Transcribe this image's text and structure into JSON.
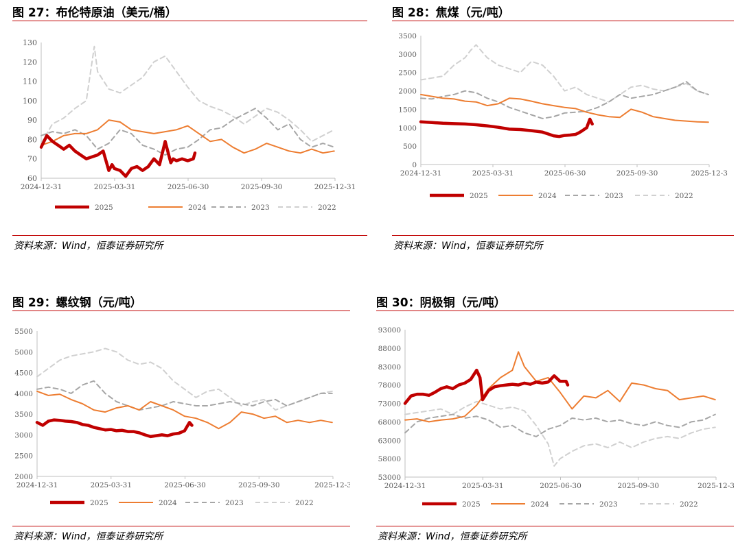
{
  "colors": {
    "s2025": "#c00000",
    "s2024": "#ed7d31",
    "s2023": "#a6a6a6",
    "s2022": "#d0d0d0",
    "rule": "#c00000"
  },
  "source_note": "资料来源：Wind，恒泰证券研究所",
  "legend_labels": [
    "2025",
    "2024",
    "2023",
    "2022"
  ],
  "chart_data": [
    {
      "type": "line",
      "title": "图 27：布伦特原油（美元/桶）",
      "ylim": [
        60,
        130
      ],
      "yticks": [
        60,
        70,
        80,
        90,
        100,
        110,
        120,
        130
      ],
      "xtick_labels": [
        "2024-12-31",
        "2025-03-31",
        "2025-06-30",
        "2025-09-30",
        "2025-12-31"
      ],
      "xrange": [
        0,
        365
      ],
      "series": [
        {
          "name": "2025",
          "x": [
            0,
            7,
            14,
            21,
            28,
            35,
            42,
            49,
            56,
            63,
            70,
            77,
            84,
            88,
            91,
            98,
            105,
            112,
            119,
            126,
            133,
            140,
            147,
            154,
            161,
            164,
            168,
            175,
            182,
            189,
            191
          ],
          "y": [
            76,
            82,
            79,
            77,
            75,
            77,
            74,
            72,
            70,
            71,
            72,
            74,
            64,
            67,
            65,
            64,
            61,
            65,
            66,
            64,
            66,
            70,
            67,
            79,
            68,
            70,
            69,
            70,
            69,
            70,
            73
          ]
        },
        {
          "name": "2024",
          "x": [
            0,
            14,
            28,
            42,
            56,
            70,
            84,
            98,
            112,
            126,
            140,
            154,
            168,
            182,
            196,
            210,
            224,
            238,
            252,
            266,
            280,
            294,
            308,
            322,
            336,
            350,
            364
          ],
          "y": [
            77,
            79,
            82,
            83,
            83,
            85,
            90,
            89,
            85,
            84,
            83,
            84,
            85,
            87,
            83,
            79,
            80,
            76,
            73,
            75,
            78,
            76,
            74,
            73,
            75,
            73,
            74
          ]
        },
        {
          "name": "2023",
          "x": [
            0,
            14,
            28,
            42,
            56,
            70,
            84,
            98,
            112,
            126,
            140,
            154,
            168,
            182,
            196,
            210,
            224,
            238,
            252,
            266,
            280,
            294,
            308,
            322,
            336,
            350,
            364
          ],
          "y": [
            82,
            84,
            83,
            85,
            82,
            75,
            78,
            85,
            83,
            77,
            75,
            72,
            75,
            76,
            80,
            85,
            86,
            90,
            93,
            96,
            91,
            85,
            88,
            80,
            76,
            78,
            76
          ]
        },
        {
          "name": "2022",
          "x": [
            0,
            14,
            28,
            42,
            56,
            66,
            70,
            84,
            98,
            112,
            126,
            140,
            154,
            168,
            182,
            196,
            210,
            224,
            238,
            252,
            266,
            280,
            294,
            308,
            322,
            336,
            350,
            364
          ],
          "y": [
            78,
            88,
            91,
            96,
            100,
            128,
            115,
            106,
            104,
            108,
            112,
            120,
            123,
            115,
            107,
            100,
            97,
            95,
            92,
            88,
            92,
            96,
            94,
            90,
            85,
            79,
            82,
            85
          ]
        }
      ]
    },
    {
      "type": "line",
      "title": "图 28：焦煤（元/吨）",
      "ylim": [
        0,
        3500
      ],
      "yticks": [
        0,
        500,
        1000,
        1500,
        2000,
        2500,
        3000,
        3500
      ],
      "xtick_labels": [
        "2024-12-31",
        "2025-03-31",
        "2025-06-30",
        "2025-09-30",
        "2025-12-3"
      ],
      "xrange": [
        0,
        365
      ],
      "series": [
        {
          "name": "2025",
          "x": [
            0,
            14,
            28,
            42,
            56,
            70,
            84,
            98,
            112,
            126,
            140,
            154,
            161,
            168,
            175,
            182,
            189,
            196,
            200,
            203,
            210,
            214,
            217
          ],
          "y": [
            1160,
            1140,
            1120,
            1110,
            1100,
            1080,
            1050,
            1010,
            960,
            950,
            920,
            880,
            830,
            780,
            760,
            790,
            800,
            820,
            860,
            900,
            1000,
            1230,
            1100
          ]
        },
        {
          "name": "2024",
          "x": [
            0,
            14,
            28,
            42,
            56,
            70,
            84,
            98,
            112,
            126,
            140,
            154,
            168,
            182,
            196,
            210,
            224,
            238,
            252,
            266,
            280,
            294,
            308,
            322,
            336,
            350,
            364
          ],
          "y": [
            1900,
            1850,
            1800,
            1780,
            1720,
            1700,
            1600,
            1650,
            1800,
            1780,
            1720,
            1650,
            1600,
            1550,
            1520,
            1420,
            1350,
            1300,
            1280,
            1500,
            1420,
            1300,
            1250,
            1200,
            1180,
            1160,
            1150
          ]
        },
        {
          "name": "2023",
          "x": [
            0,
            14,
            28,
            42,
            56,
            70,
            84,
            98,
            112,
            126,
            140,
            154,
            168,
            182,
            196,
            210,
            224,
            238,
            252,
            266,
            280,
            294,
            308,
            322,
            336,
            350,
            364
          ],
          "y": [
            1800,
            1780,
            1850,
            1900,
            2000,
            1950,
            1800,
            1700,
            1550,
            1450,
            1350,
            1250,
            1300,
            1400,
            1420,
            1450,
            1550,
            1700,
            1900,
            1800,
            1850,
            1900,
            2000,
            2100,
            2250,
            2000,
            1900
          ]
        },
        {
          "name": "2022",
          "x": [
            0,
            14,
            28,
            42,
            56,
            63,
            70,
            84,
            98,
            112,
            126,
            140,
            154,
            168,
            182,
            196,
            210,
            224,
            238,
            252,
            266,
            280,
            294,
            308,
            322,
            336,
            350,
            364
          ],
          "y": [
            2300,
            2350,
            2400,
            2700,
            2900,
            3100,
            3250,
            2900,
            2700,
            2600,
            2500,
            2800,
            2700,
            2400,
            2000,
            2100,
            1900,
            1800,
            1700,
            1900,
            2100,
            2150,
            2050,
            2000,
            2100,
            2200,
            2000,
            1900
          ]
        }
      ]
    },
    {
      "type": "line",
      "title": "图 29：螺纹钢（元/吨）",
      "ylim": [
        2000,
        5500
      ],
      "yticks": [
        2000,
        2500,
        3000,
        3500,
        4000,
        4500,
        5000,
        5500
      ],
      "xtick_labels": [
        "2024-12-31",
        "2025-03-31",
        "2025-06-30",
        "2025-09-30",
        "2025-12-3"
      ],
      "xrange": [
        0,
        365
      ],
      "series": [
        {
          "name": "2025",
          "x": [
            0,
            7,
            14,
            21,
            28,
            35,
            42,
            49,
            56,
            63,
            70,
            77,
            84,
            91,
            98,
            105,
            112,
            119,
            126,
            133,
            140,
            147,
            154,
            161,
            168,
            175,
            182,
            188,
            191
          ],
          "y": [
            3300,
            3230,
            3330,
            3360,
            3350,
            3330,
            3320,
            3300,
            3250,
            3230,
            3180,
            3150,
            3120,
            3130,
            3100,
            3110,
            3080,
            3080,
            3050,
            3000,
            2960,
            2980,
            3000,
            2980,
            3020,
            3040,
            3100,
            3300,
            3230
          ]
        },
        {
          "name": "2024",
          "x": [
            0,
            14,
            28,
            42,
            56,
            70,
            84,
            98,
            112,
            126,
            140,
            154,
            168,
            182,
            196,
            210,
            224,
            238,
            252,
            266,
            280,
            294,
            308,
            322,
            336,
            350,
            364
          ],
          "y": [
            4050,
            3950,
            3980,
            3850,
            3750,
            3600,
            3550,
            3650,
            3700,
            3600,
            3800,
            3700,
            3600,
            3450,
            3400,
            3300,
            3150,
            3300,
            3550,
            3500,
            3400,
            3450,
            3300,
            3350,
            3300,
            3350,
            3300
          ]
        },
        {
          "name": "2023",
          "x": [
            0,
            14,
            28,
            42,
            56,
            70,
            84,
            98,
            112,
            126,
            140,
            154,
            168,
            182,
            196,
            210,
            224,
            238,
            252,
            266,
            280,
            294,
            308,
            322,
            336,
            350,
            364
          ],
          "y": [
            4100,
            4150,
            4100,
            4000,
            4200,
            4300,
            4000,
            3800,
            3700,
            3600,
            3650,
            3700,
            3800,
            3750,
            3700,
            3700,
            3750,
            3800,
            3750,
            3700,
            3800,
            3850,
            3700,
            3800,
            3900,
            4000,
            4000
          ]
        },
        {
          "name": "2022",
          "x": [
            0,
            14,
            28,
            42,
            56,
            70,
            84,
            98,
            112,
            126,
            140,
            154,
            168,
            182,
            196,
            210,
            224,
            238,
            252,
            266,
            280,
            294,
            308,
            322,
            336,
            350,
            364
          ],
          "y": [
            4400,
            4600,
            4800,
            4900,
            4950,
            5000,
            5080,
            5000,
            4800,
            4700,
            4750,
            4600,
            4300,
            4100,
            3900,
            4050,
            4100,
            3900,
            3700,
            3800,
            3850,
            3600,
            3700,
            3800,
            3900,
            4000,
            4050
          ]
        }
      ]
    },
    {
      "type": "line",
      "title": "图 30：阴极铜（元/吨）",
      "ylim": [
        53000,
        93000
      ],
      "yticks": [
        53000,
        58000,
        63000,
        68000,
        73000,
        78000,
        83000,
        88000,
        93000
      ],
      "xtick_labels": [
        "2024-12-31",
        "2025-03-31",
        "2025-06-30",
        "2025-09-30",
        "2025-12-3"
      ],
      "xrange": [
        0,
        365
      ],
      "series": [
        {
          "name": "2025",
          "x": [
            0,
            7,
            14,
            21,
            28,
            35,
            42,
            49,
            56,
            63,
            70,
            77,
            84,
            88,
            91,
            98,
            105,
            112,
            119,
            126,
            133,
            140,
            147,
            154,
            161,
            168,
            175,
            182,
            189,
            191
          ],
          "y": [
            73000,
            75000,
            75500,
            75500,
            75200,
            76000,
            77000,
            77500,
            77000,
            78000,
            78500,
            79500,
            82000,
            80000,
            74000,
            76500,
            77500,
            77800,
            78000,
            78200,
            78000,
            78500,
            78200,
            78800,
            78500,
            78800,
            80500,
            79000,
            79000,
            78000
          ]
        },
        {
          "name": "2024",
          "x": [
            0,
            14,
            28,
            42,
            56,
            70,
            84,
            98,
            112,
            126,
            133,
            140,
            154,
            168,
            182,
            196,
            210,
            224,
            238,
            252,
            266,
            280,
            294,
            308,
            322,
            336,
            350,
            364
          ],
          "y": [
            68500,
            68800,
            68000,
            68500,
            68800,
            69500,
            72500,
            77000,
            80000,
            82000,
            87000,
            83000,
            79000,
            80000,
            76000,
            71500,
            75000,
            74500,
            76500,
            73500,
            78500,
            78000,
            77000,
            76500,
            74000,
            74500,
            75000,
            74000
          ]
        },
        {
          "name": "2023",
          "x": [
            0,
            14,
            28,
            42,
            56,
            70,
            84,
            98,
            112,
            126,
            140,
            154,
            168,
            182,
            196,
            210,
            224,
            238,
            252,
            266,
            280,
            294,
            308,
            322,
            336,
            350,
            364
          ],
          "y": [
            65000,
            68000,
            69000,
            69500,
            70000,
            69000,
            69500,
            68500,
            66500,
            67000,
            65000,
            64000,
            66000,
            67000,
            69000,
            68500,
            69000,
            68000,
            68500,
            67500,
            67000,
            68000,
            67000,
            66500,
            68000,
            68500,
            70000
          ]
        },
        {
          "name": "2022",
          "x": [
            0,
            14,
            28,
            42,
            56,
            70,
            84,
            98,
            112,
            126,
            140,
            154,
            168,
            175,
            182,
            196,
            210,
            224,
            238,
            252,
            266,
            280,
            294,
            308,
            322,
            336,
            350,
            364
          ],
          "y": [
            70000,
            70500,
            71000,
            71500,
            70000,
            72000,
            73500,
            72500,
            71500,
            72000,
            71000,
            67000,
            62000,
            56000,
            58000,
            60000,
            61500,
            62000,
            61000,
            62500,
            61000,
            62500,
            63500,
            64000,
            63500,
            65000,
            66000,
            66500
          ]
        }
      ]
    }
  ]
}
